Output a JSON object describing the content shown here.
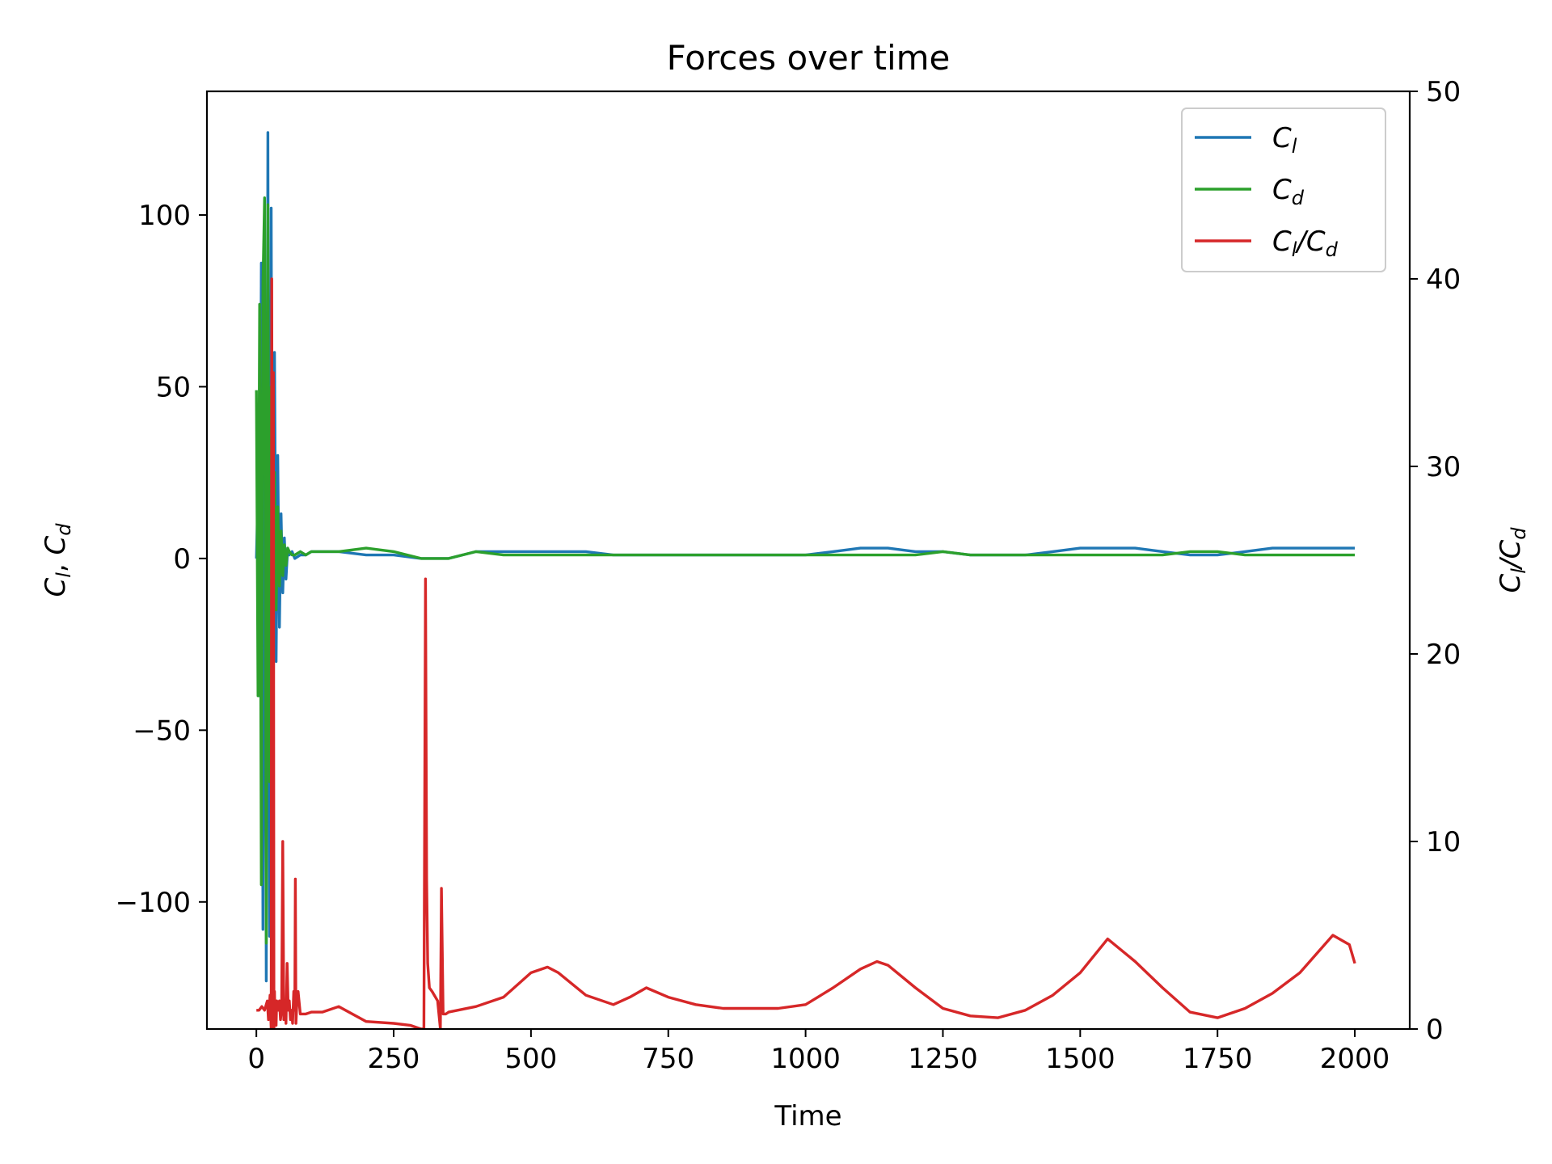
{
  "chart_data": {
    "type": "line",
    "title": "Forces over time",
    "xlabel": "Time",
    "ylabel": "C_l, C_d",
    "ylabel_right": "C_l/C_d",
    "xlim": [
      -90,
      2100
    ],
    "ylim_left": [
      -137,
      136
    ],
    "ylim_right": [
      0,
      50
    ],
    "xticks": [
      0,
      250,
      500,
      750,
      1000,
      1250,
      1500,
      1750,
      2000
    ],
    "xtick_labels": [
      "0",
      "250",
      "500",
      "750",
      "1000",
      "1250",
      "1500",
      "1750",
      "2000"
    ],
    "yticks_left": [
      -100,
      -50,
      0,
      50,
      100
    ],
    "ytick_labels_left": [
      "−100",
      "−50",
      "0",
      "50",
      "100"
    ],
    "yticks_right": [
      0,
      10,
      20,
      30,
      40,
      50
    ],
    "ytick_labels_right": [
      "0",
      "10",
      "20",
      "30",
      "40",
      "50"
    ],
    "legend_placement": "upper right",
    "grid": false,
    "colors": {
      "cl": "#1f77b4",
      "cd": "#2ca02c",
      "ratio": "#d62728"
    },
    "legend": [
      {
        "main": "C",
        "sub": "l",
        "rest": ""
      },
      {
        "main": "C",
        "sub": "d",
        "rest": ""
      },
      {
        "main": "C",
        "sub": "l",
        "rest": "/C",
        "sub2": "d"
      }
    ],
    "series": [
      {
        "name": "C_l",
        "axis": "left",
        "x": [
          0,
          3,
          6,
          9,
          12,
          15,
          18,
          21,
          24,
          27,
          30,
          33,
          36,
          39,
          42,
          45,
          48,
          51,
          54,
          57,
          60,
          65,
          70,
          80,
          90,
          100,
          120,
          150,
          200,
          250,
          300,
          350,
          400,
          450,
          500,
          550,
          600,
          650,
          700,
          750,
          800,
          850,
          900,
          950,
          1000,
          1050,
          1100,
          1150,
          1200,
          1250,
          1300,
          1350,
          1400,
          1450,
          1500,
          1550,
          1600,
          1650,
          1700,
          1750,
          1800,
          1850,
          1900,
          1950,
          2000
        ],
        "y": [
          0,
          20,
          -40,
          86,
          -108,
          100,
          -123,
          124,
          -110,
          102,
          -95,
          60,
          -30,
          30,
          -20,
          13,
          -10,
          6,
          -6,
          3,
          1,
          2,
          0,
          1,
          1,
          2,
          2,
          2,
          1,
          1,
          0,
          0,
          2,
          2,
          2,
          2,
          2,
          1,
          1,
          1,
          1,
          1,
          1,
          1,
          1,
          2,
          3,
          3,
          2,
          2,
          1,
          1,
          1,
          2,
          3,
          3,
          3,
          2,
          1,
          1,
          2,
          3,
          3,
          3,
          3
        ]
      },
      {
        "name": "C_d",
        "axis": "left",
        "x": [
          0,
          3,
          6,
          9,
          12,
          15,
          18,
          21,
          24,
          27,
          30,
          33,
          36,
          39,
          42,
          45,
          48,
          51,
          54,
          57,
          60,
          65,
          70,
          80,
          90,
          100,
          120,
          150,
          200,
          250,
          300,
          350,
          400,
          450,
          500,
          550,
          600,
          650,
          700,
          750,
          800,
          850,
          900,
          950,
          1000,
          1050,
          1100,
          1150,
          1200,
          1250,
          1300,
          1350,
          1400,
          1450,
          1500,
          1550,
          1600,
          1650,
          1700,
          1750,
          1800,
          1850,
          1900,
          1950,
          2000
        ],
        "y": [
          49,
          -40,
          74,
          -95,
          80,
          105,
          -112,
          103,
          -65,
          50,
          -25,
          25,
          -15,
          15,
          -8,
          8,
          -5,
          4,
          -2,
          3,
          2,
          1,
          1,
          2,
          1,
          2,
          2,
          2,
          3,
          2,
          0,
          0,
          2,
          1,
          1,
          1,
          1,
          1,
          1,
          1,
          1,
          1,
          1,
          1,
          1,
          1,
          1,
          1,
          1,
          2,
          1,
          1,
          1,
          1,
          1,
          1,
          1,
          1,
          2,
          2,
          1,
          1,
          1,
          1,
          1
        ]
      },
      {
        "name": "C_l/C_d",
        "axis": "right",
        "x": [
          0,
          5,
          10,
          15,
          20,
          22,
          25,
          27,
          28,
          30,
          31,
          32,
          33,
          34,
          35,
          36,
          37,
          38,
          40,
          42,
          44,
          46,
          48,
          50,
          52,
          54,
          56,
          58,
          60,
          62,
          64,
          66,
          68,
          70,
          71,
          72,
          74,
          76,
          80,
          90,
          100,
          120,
          150,
          200,
          250,
          280,
          300,
          305,
          308,
          310,
          312,
          315,
          320,
          330,
          335,
          337,
          340,
          345,
          350,
          400,
          450,
          500,
          530,
          550,
          600,
          650,
          680,
          710,
          750,
          800,
          850,
          900,
          950,
          1000,
          1050,
          1100,
          1130,
          1150,
          1200,
          1250,
          1300,
          1350,
          1400,
          1450,
          1500,
          1550,
          1600,
          1650,
          1700,
          1750,
          1800,
          1850,
          1900,
          1960,
          1990,
          2000
        ],
        "y": [
          1,
          1,
          1.2,
          1,
          1.5,
          0.5,
          1.8,
          0,
          40,
          0.5,
          35,
          0,
          2,
          0.3,
          1,
          0.2,
          1.5,
          1,
          1,
          1.5,
          0.5,
          1,
          10,
          0.5,
          1.5,
          0.3,
          3.5,
          1,
          1.5,
          0.5,
          1,
          0.3,
          2,
          1,
          8,
          0.3,
          1.5,
          2,
          0.8,
          0.8,
          0.9,
          0.9,
          1.2,
          0.4,
          0.3,
          0.2,
          0,
          0,
          24,
          8,
          3.5,
          2.2,
          2,
          1.5,
          0,
          7.5,
          0.8,
          0.8,
          0.9,
          1.2,
          1.7,
          3,
          3.3,
          3,
          1.8,
          1.3,
          1.7,
          2.2,
          1.7,
          1.3,
          1.1,
          1.1,
          1.1,
          1.3,
          2.2,
          3.2,
          3.6,
          3.4,
          2.2,
          1.1,
          0.7,
          0.6,
          1,
          1.8,
          3,
          4.8,
          3.6,
          2.2,
          0.9,
          0.6,
          1.1,
          1.9,
          3,
          5,
          4.5,
          3.5
        ]
      }
    ]
  }
}
